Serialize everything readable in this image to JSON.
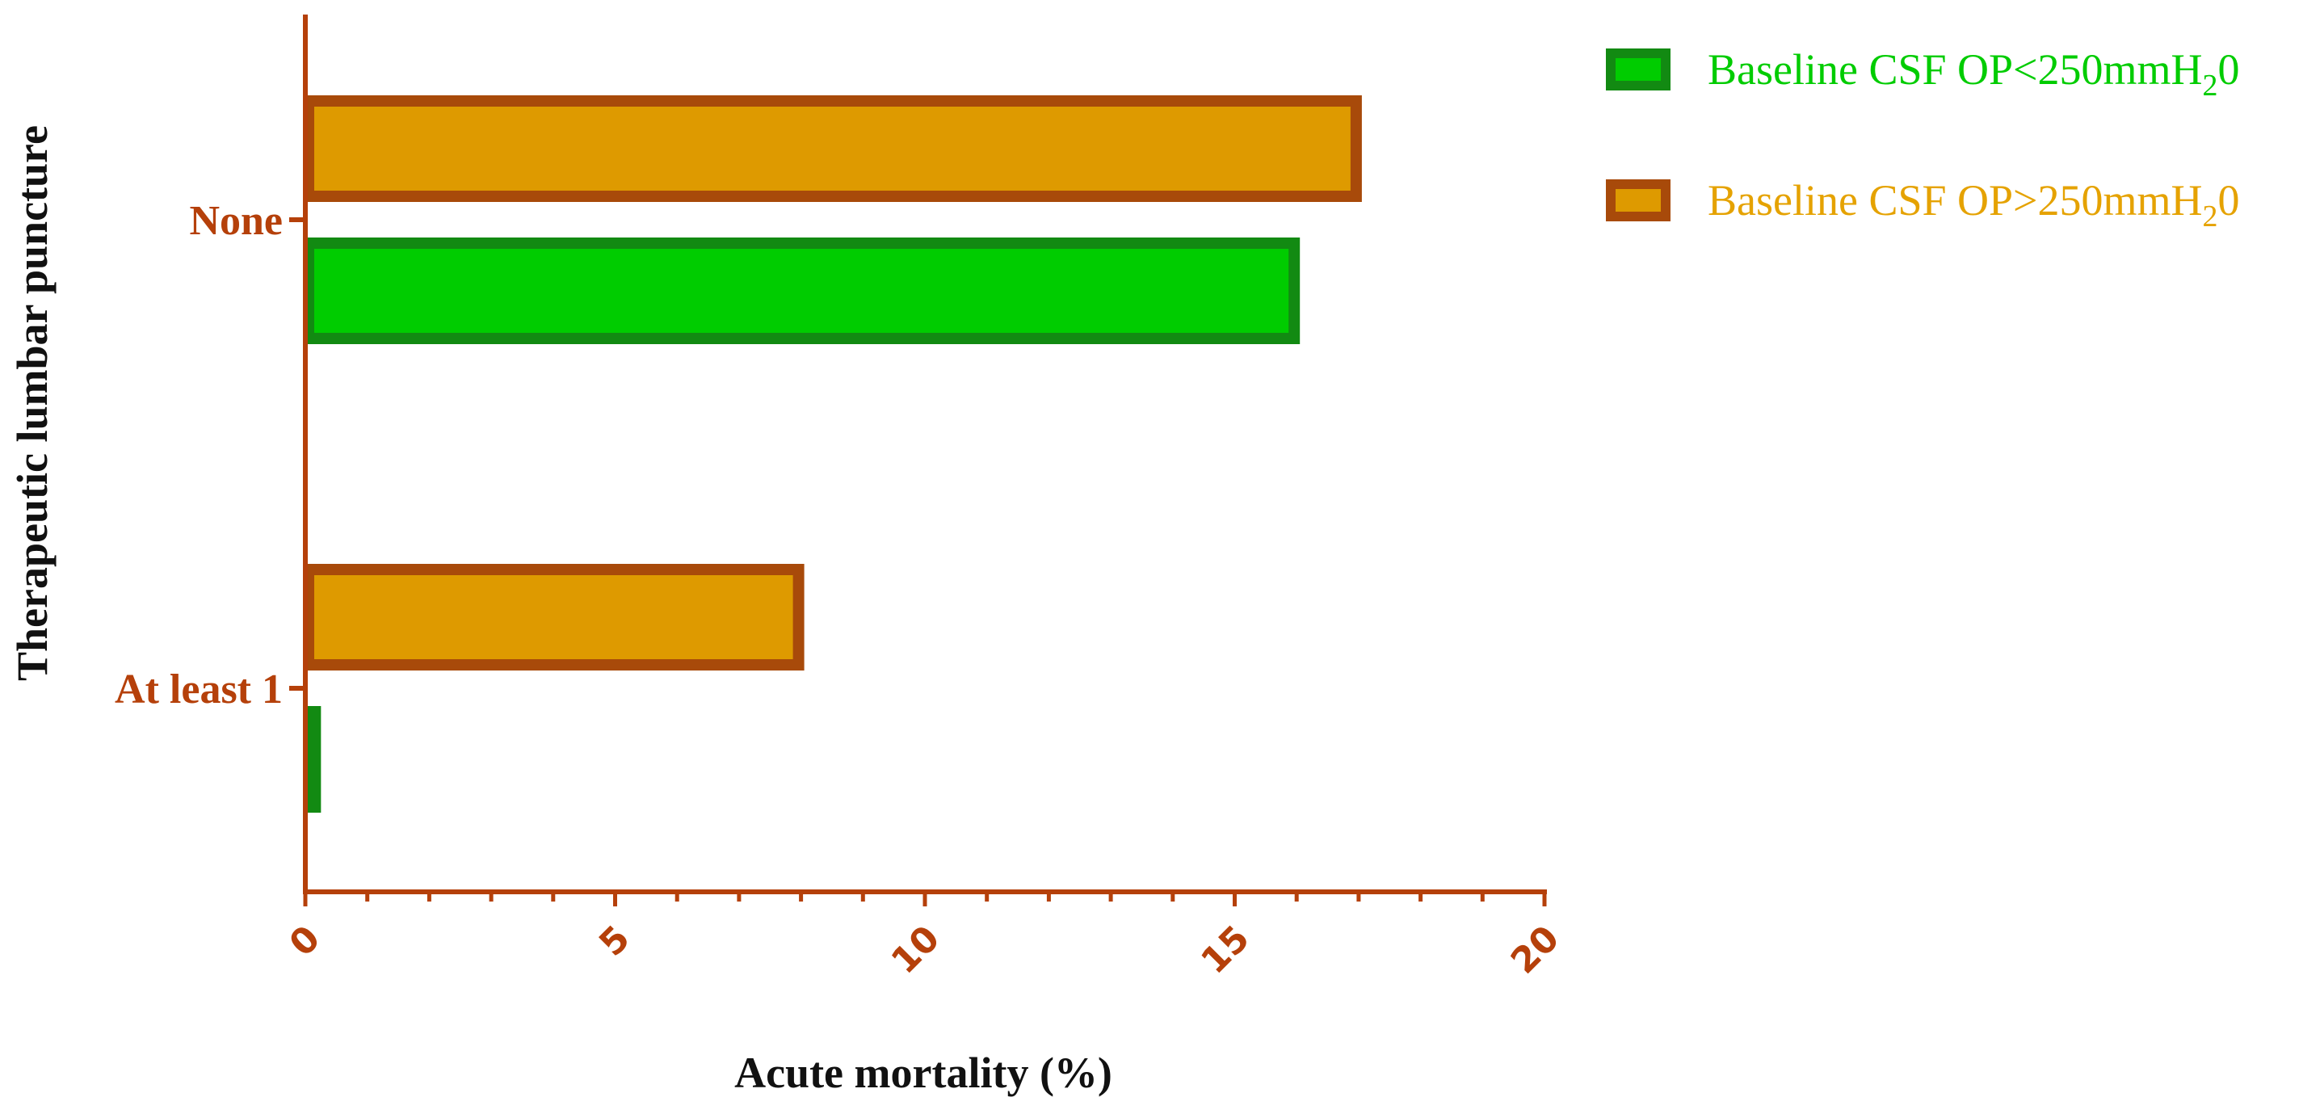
{
  "colors": {
    "axis": "#B5400A",
    "series_low_fill": "#00CC00",
    "series_low_border": "#128A12",
    "series_low_text": "#00CC00",
    "series_high_fill": "#DE9A00",
    "series_high_border": "#A84A0A",
    "series_high_text": "#E5A200",
    "axis_title": "#111111"
  },
  "chart_data": {
    "type": "bar",
    "orientation": "horizontal",
    "categories": [
      "None",
      "At least 1"
    ],
    "series": [
      {
        "name_main": "Baseline CSF OP<250mmH",
        "name_sub": "2",
        "name_tail": "0",
        "values": [
          16,
          0.2
        ]
      },
      {
        "name_main": "Baseline CSF OP>250mmH",
        "name_sub": "2",
        "name_tail": "0",
        "values": [
          17,
          8
        ]
      }
    ],
    "xlabel": "Acute mortality (%)",
    "ylabel": "Therapeutic lumbar puncture",
    "xlim": [
      0,
      20
    ],
    "xticks": [
      0,
      5,
      10,
      15,
      20
    ],
    "xtick_labels": [
      "0",
      "5",
      "10",
      "15",
      "20"
    ],
    "grid": false,
    "legend_position": "top-right"
  }
}
